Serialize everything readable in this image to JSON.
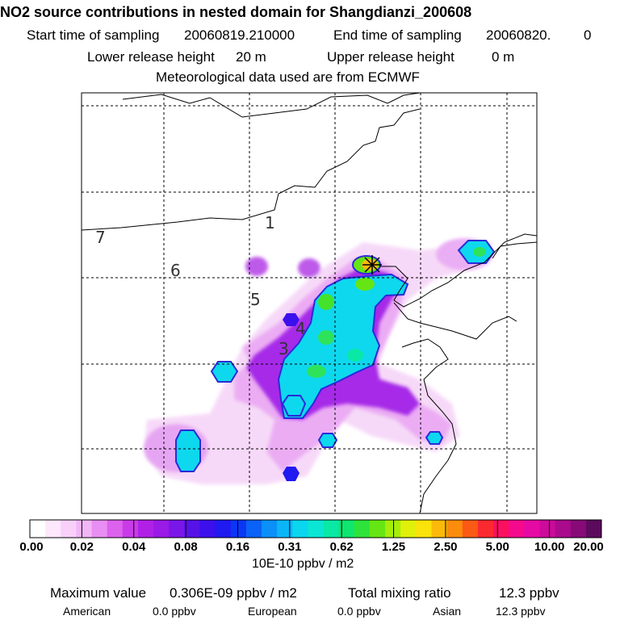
{
  "header": {
    "title": "NO2 source contributions in nested domain for Shangdianzi_200608",
    "start_label": "Start time of sampling",
    "start_value": "20060819.210000",
    "end_label": "End time of sampling",
    "end_value": "20060820.",
    "end_suffix": "0",
    "lower_label": "Lower release height",
    "lower_value": "20 m",
    "upper_label": "Upper release height",
    "upper_value": "0 m",
    "met_text": "Meteorological data used are from ECMWF"
  },
  "map": {
    "region_labels": [
      "7",
      "1",
      "6",
      "5",
      "4",
      "3"
    ],
    "source_marker": "receptor-star-icon"
  },
  "colorbar": {
    "tick_labels": [
      "0.00",
      "0.02",
      "0.04",
      "0.08",
      "0.16",
      "0.31",
      "0.62",
      "1.25",
      "2.50",
      "5.00",
      "10.00",
      "20.00"
    ],
    "unit_label": "10E-10 ppbv / m2",
    "colors": [
      "#ffffff",
      "#fde8fd",
      "#f8d0f9",
      "#f2b6f7",
      "#e98ef2",
      "#dc62ee",
      "#c93be9",
      "#b020e6",
      "#9a1ae6",
      "#7b16e8",
      "#5712e8",
      "#3c10ec",
      "#2019f0",
      "#0b36f4",
      "#0a62f6",
      "#0b8ff8",
      "#0bb6f8",
      "#0ad6f0",
      "#0be5d4",
      "#0ae8a6",
      "#0ee66e",
      "#2ee33a",
      "#66e514",
      "#a6ee0a",
      "#e0f00a",
      "#fbe20a",
      "#fbba0a",
      "#fb8c0c",
      "#fb5a14",
      "#fb2a30",
      "#fb1060",
      "#f50a8e",
      "#e60aa4",
      "#cc0a9c",
      "#aa0a8c",
      "#870a78",
      "#5c0a5c"
    ]
  },
  "footer": {
    "max_label": "Maximum value",
    "max_value": "0.306E-09 ppbv / m2",
    "total_label": "Total mixing ratio",
    "total_value": "12.3 ppbv",
    "american_label": "American",
    "american_value": "0.0 ppbv",
    "european_label": "European",
    "european_value": "0.0 ppbv",
    "asian_label": "Asian",
    "asian_value": "12.3 ppbv"
  }
}
